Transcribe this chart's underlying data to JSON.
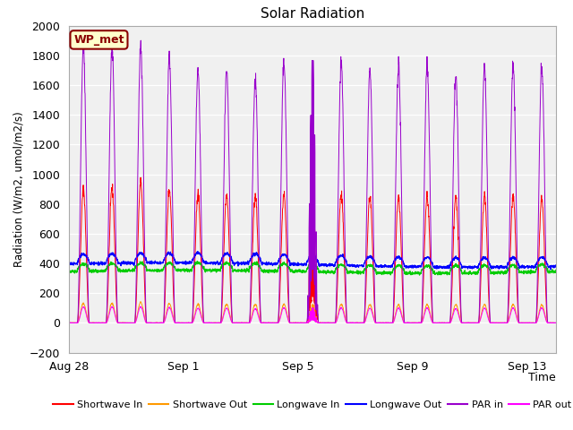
{
  "title": "Solar Radiation",
  "ylabel": "Radiation (W/m2, umol/m2/s)",
  "xlabel": "Time",
  "ylim": [
    -200,
    2000
  ],
  "yticks": [
    -200,
    0,
    200,
    400,
    600,
    800,
    1000,
    1200,
    1400,
    1600,
    1800,
    2000
  ],
  "fig_bg_color": "#ffffff",
  "plot_bg_color": "#f0f0f0",
  "annotation_text": "WP_met",
  "annotation_box_color": "#ffffcc",
  "annotation_border_color": "#8b0000",
  "annotation_text_color": "#8b0000",
  "colors": {
    "shortwave_in": "#ff0000",
    "shortwave_out": "#ff9900",
    "longwave_in": "#00cc00",
    "longwave_out": "#0000ff",
    "par_in": "#9900cc",
    "par_out": "#ff00ff"
  },
  "xtick_dates": [
    "Aug 28",
    "Sep 1",
    "Sep 5",
    "Sep 9",
    "Sep 13"
  ],
  "xtick_pos": [
    0,
    4,
    8,
    12,
    16
  ],
  "num_days": 17,
  "longwave_in_base": 360,
  "longwave_out_base": 400,
  "legend_entries": [
    "Shortwave In",
    "Shortwave Out",
    "Longwave In",
    "Longwave Out",
    "PAR in",
    "PAR out"
  ]
}
